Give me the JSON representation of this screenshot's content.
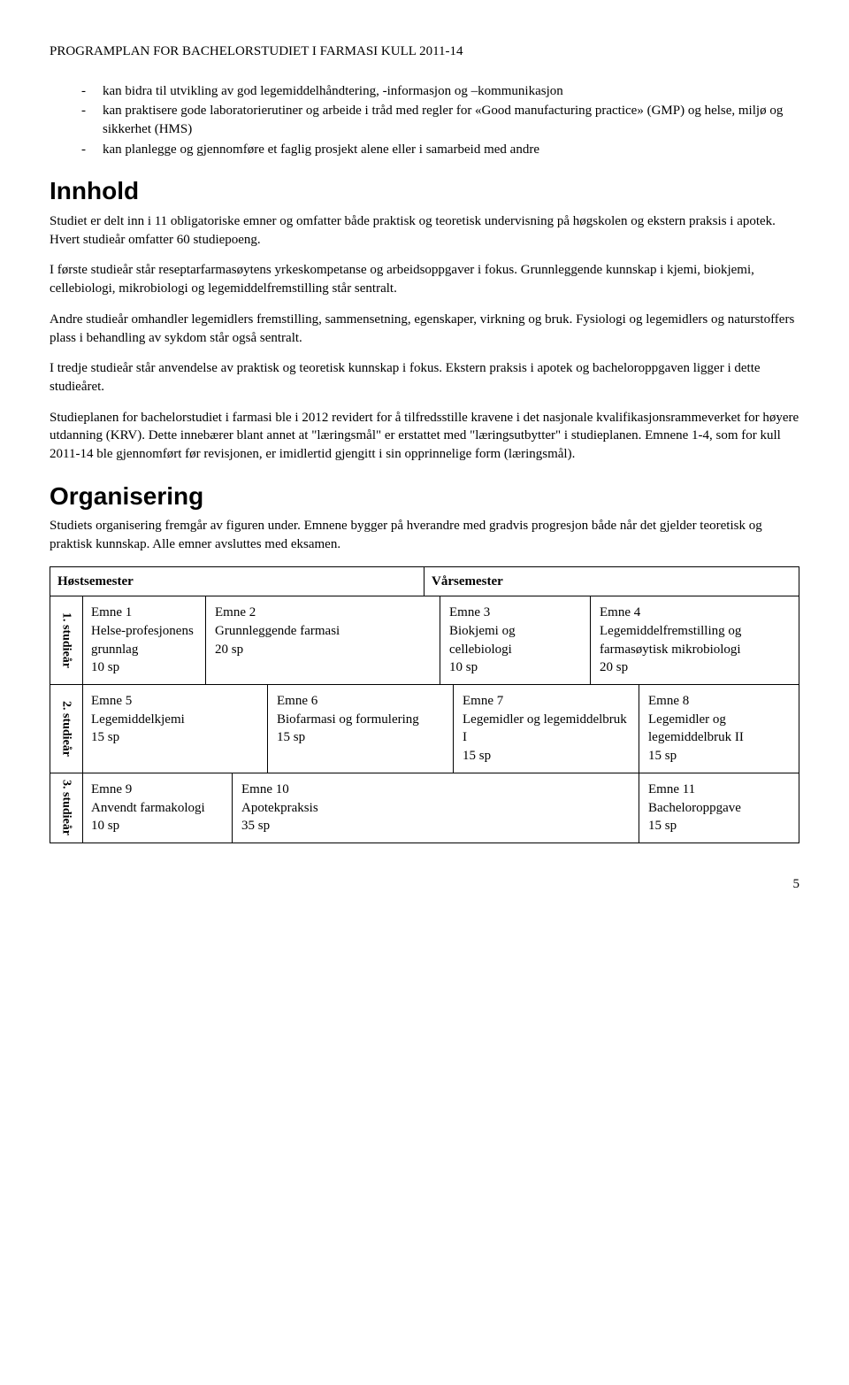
{
  "header": "PROGRAMPLAN FOR BACHELORSTUDIET I FARMASI KULL 2011-14",
  "bullets": [
    "kan bidra til utvikling av god legemiddelhåndtering, -informasjon og –kommunikasjon",
    "kan praktisere gode laboratorierutiner og arbeide i tråd med regler for «Good manufacturing practice» (GMP) og helse, miljø og sikkerhet (HMS)",
    "kan planlegge og gjennomføre et faglig prosjekt alene eller i samarbeid med andre"
  ],
  "sections": {
    "innhold": {
      "title": "Innhold",
      "p1": "Studiet er delt inn i 11 obligatoriske emner og omfatter både praktisk og teoretisk undervisning på høgskolen og ekstern praksis i apotek. Hvert studieår omfatter 60 studiepoeng.",
      "p2": "I første studieår står reseptarfarmasøytens yrkeskompetanse og arbeidsoppgaver i fokus. Grunnleggende kunnskap i kjemi, biokjemi, cellebiologi, mikrobiologi og legemiddelfremstilling står sentralt.",
      "p3": "Andre studieår omhandler legemidlers fremstilling, sammensetning, egenskaper, virkning og bruk. Fysiologi og legemidlers og naturstoffers plass i behandling av sykdom står også sentralt.",
      "p4": "I tredje studieår står anvendelse av praktisk og teoretisk kunnskap i fokus. Ekstern praksis i apotek og bacheloroppgaven ligger i dette studieåret.",
      "p5": "Studieplanen for bachelorstudiet i farmasi ble i 2012 revidert for å tilfredsstille kravene i det nasjonale kvalifikasjonsrammeverket for høyere utdanning (KRV). Dette innebærer blant annet at \"læringsmål\" er erstattet med \"læringsutbytter\" i studieplanen. Emnene 1-4, som for kull 2011-14 ble gjennomført før revisjonen, er imidlertid gjengitt i sin opprinnelige form (læringsmål)."
    },
    "organisering": {
      "title": "Organisering",
      "p1": "Studiets organisering fremgår av figuren under. Emnene bygger på hverandre med gradvis progresjon både når det gjelder teoretisk og praktisk kunnskap. Alle emner avsluttes med eksamen."
    }
  },
  "table": {
    "head": {
      "left": "Høstsemester",
      "right": "Vårsemester"
    },
    "rows": [
      {
        "year": "1. studieår",
        "cells": [
          {
            "num": "Emne 1",
            "title": "Helse-profesjonens grunnlag",
            "sp": "10 sp"
          },
          {
            "num": "Emne 2",
            "title": "Grunnleggende farmasi",
            "sp": "20 sp"
          },
          {
            "num": "Emne 3",
            "title": "Biokjemi og cellebiologi",
            "sp": "10 sp"
          },
          {
            "num": "Emne 4",
            "title": "Legemiddelfremstilling og farmasøytisk mikrobiologi",
            "sp": "20 sp"
          }
        ]
      },
      {
        "year": "2. studieår",
        "cells": [
          {
            "num": "Emne 5",
            "title": "Legemiddelkjemi",
            "sp": "15 sp"
          },
          {
            "num": "Emne 6",
            "title": "Biofarmasi og formulering",
            "sp": "15 sp"
          },
          {
            "num": "Emne 7",
            "title": "Legemidler og legemiddelbruk I",
            "sp": "15 sp"
          },
          {
            "num": "Emne 8",
            "title": "Legemidler og legemiddelbruk II",
            "sp": "15 sp"
          }
        ]
      },
      {
        "year": "3. studieår",
        "cells": [
          {
            "num": "Emne 9",
            "title": "Anvendt farmakologi",
            "sp": "10 sp"
          },
          {
            "num": "Emne 10",
            "title": "Apotekpraksis",
            "sp": "35 sp"
          },
          {
            "num": "Emne 11",
            "title": "Bacheloroppgave",
            "sp": "15 sp"
          }
        ]
      }
    ]
  },
  "pagenum": "5"
}
